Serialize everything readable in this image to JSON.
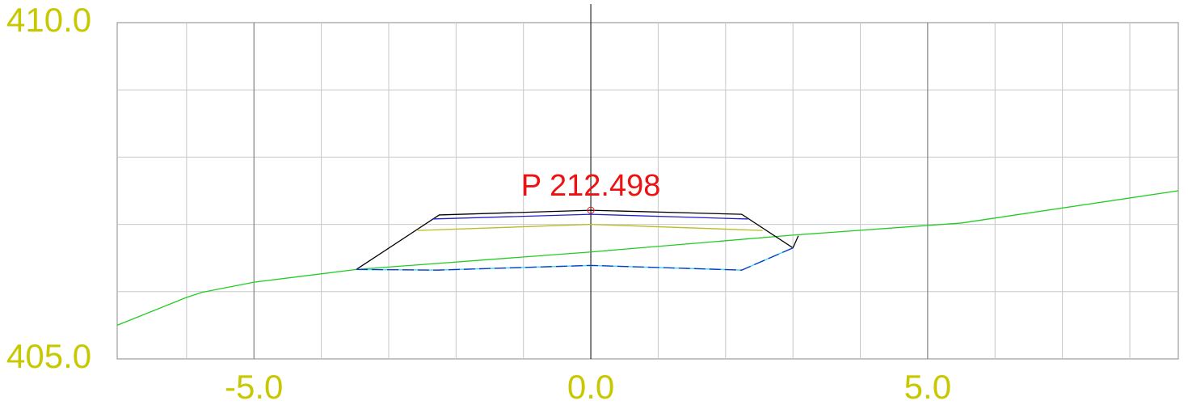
{
  "chart_data": {
    "type": "line",
    "xlim": [
      -7.03,
      8.72
    ],
    "ylim": [
      405,
      410
    ],
    "xticks": [
      {
        "value": -5,
        "label": "-5.0"
      },
      {
        "value": 0,
        "label": "0.0"
      },
      {
        "value": 5,
        "label": "5.0"
      }
    ],
    "yticks": [
      {
        "value": 405,
        "label": "405.0"
      },
      {
        "value": 410,
        "label": "410.0"
      }
    ],
    "xgrid": [
      -6,
      -5,
      -4,
      -3,
      -2,
      -1,
      0,
      1,
      2,
      3,
      4,
      5,
      6,
      7,
      8
    ],
    "ygrid": [
      406,
      407,
      408,
      409
    ],
    "grid": true,
    "series": [
      {
        "color": "#22cc22",
        "x": [
          -7.03,
          -6.01,
          -5.77,
          -5.0,
          -3.48,
          0,
          3.0,
          5.5,
          8.72
        ],
        "values": [
          405.5,
          405.91,
          405.99,
          406.14,
          406.33,
          406.59,
          406.84,
          407.02,
          407.5
        ]
      },
      {
        "color": "#000000",
        "x": [
          -3.48,
          -2.25,
          0,
          2.24,
          3.0,
          3.08
        ],
        "values": [
          406.33,
          407.14,
          407.21,
          407.15,
          406.65,
          406.83
        ]
      },
      {
        "color": "#2222cc",
        "x": [
          -2.35,
          0,
          2.33
        ],
        "values": [
          407.08,
          407.15,
          407.08
        ]
      },
      {
        "color": "#bbbb22",
        "x": [
          -2.57,
          0,
          2.55
        ],
        "values": [
          406.91,
          407.0,
          406.91
        ]
      },
      {
        "color": "#1133cc",
        "dash": true,
        "x": [
          -3.48,
          -2.28,
          0,
          2.24,
          3.0
        ],
        "values": [
          406.33,
          406.32,
          406.39,
          406.32,
          406.65
        ]
      }
    ],
    "annotation": {
      "text": "P 212.498",
      "x": 0,
      "y": 407.21,
      "color": "#ee1111"
    }
  }
}
